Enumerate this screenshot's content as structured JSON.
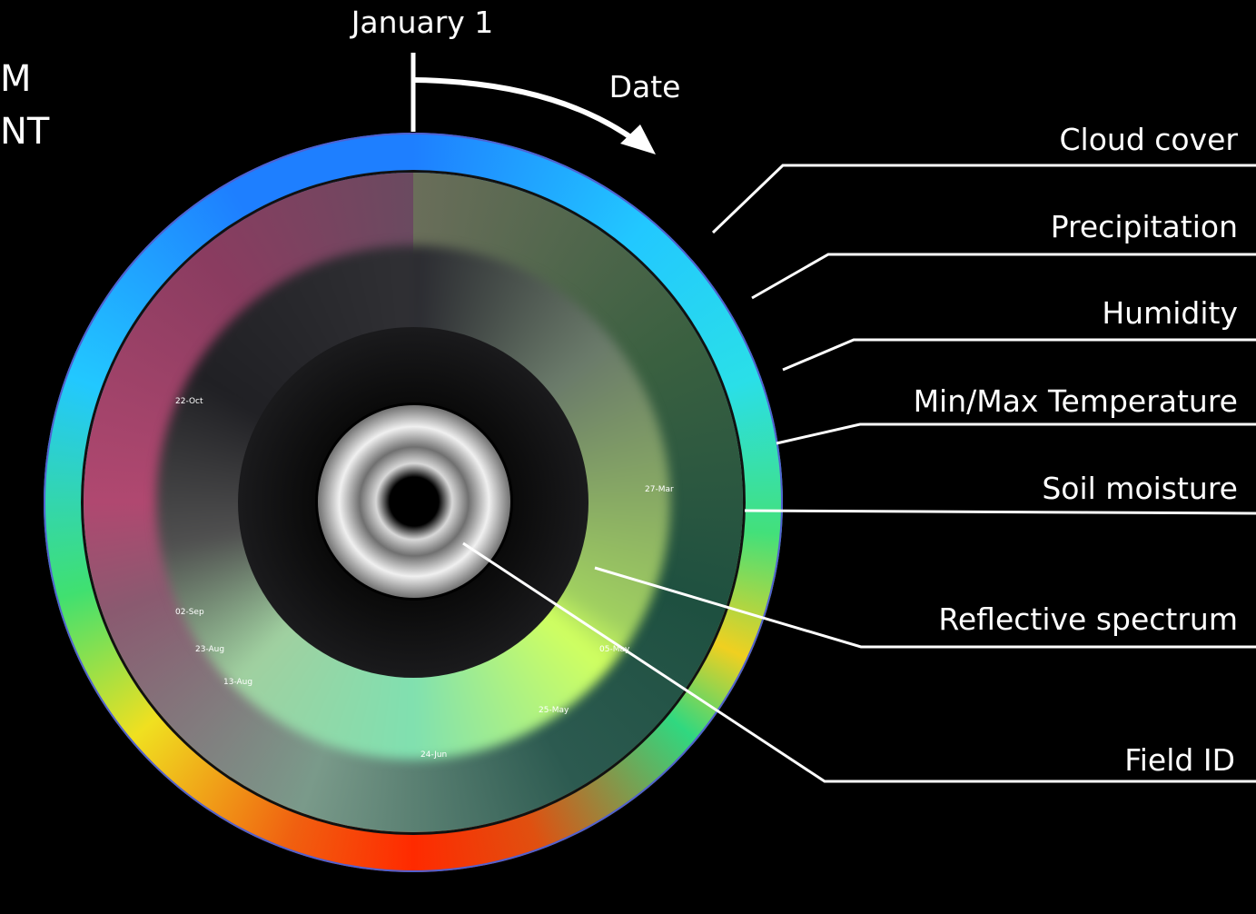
{
  "header_fragments": [
    "M",
    "NT"
  ],
  "axis": {
    "start": "January 1",
    "direction": "Date"
  },
  "date_labels": [
    "22-Oct",
    "27-Mar",
    "02-Sep",
    "23-Aug",
    "13-Aug",
    "05-May",
    "25-May",
    "24-Jun"
  ],
  "layers": [
    "Cloud cover",
    "Precipitation",
    "Humidity",
    "Min/Max Temperature",
    "Soil moisture",
    "Reflective spectrum",
    "Field ID"
  ]
}
